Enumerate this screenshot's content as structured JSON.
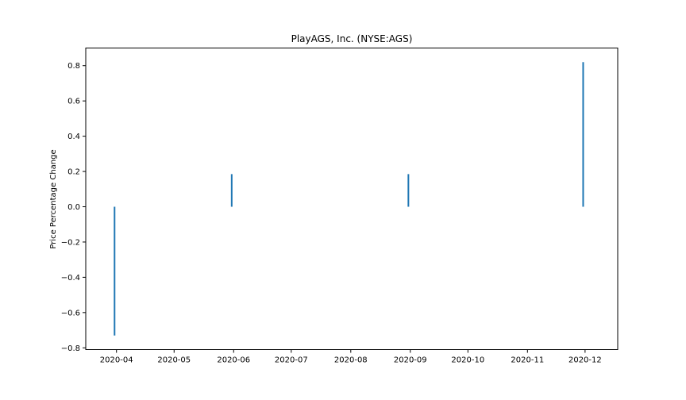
{
  "chart_data": {
    "type": "bar",
    "title": "PlayAGS, Inc. (NYSE:AGS)",
    "xlabel": "",
    "ylabel": "Price Percentage Change",
    "x_axis_type": "date",
    "xlim": [
      "2020-03-16",
      "2020-12-18"
    ],
    "ylim": [
      -0.81,
      0.9
    ],
    "x_ticks": [
      "2020-04",
      "2020-05",
      "2020-06",
      "2020-07",
      "2020-08",
      "2020-09",
      "2020-10",
      "2020-11",
      "2020-12"
    ],
    "y_ticks": [
      -0.8,
      -0.6,
      -0.4,
      -0.2,
      0.0,
      0.2,
      0.4,
      0.6,
      0.8
    ],
    "y_tick_labels": [
      "−0.8",
      "−0.6",
      "−0.4",
      "−0.2",
      "0.0",
      "0.2",
      "0.4",
      "0.6",
      "0.8"
    ],
    "bar_color": "#1f77b4",
    "grid": false,
    "points": [
      {
        "x": "2020-03-31",
        "y": -0.73
      },
      {
        "x": "2020-05-31",
        "y": 0.185
      },
      {
        "x": "2020-08-31",
        "y": 0.185
      },
      {
        "x": "2020-11-30",
        "y": 0.82
      }
    ]
  }
}
